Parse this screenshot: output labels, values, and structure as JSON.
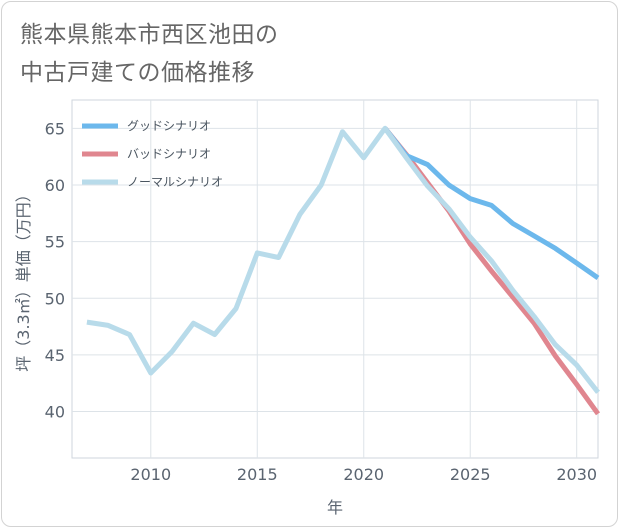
{
  "title_line1": "熊本県熊本市西区池田の",
  "title_line2": "中古戸建ての価格推移",
  "chart_data": {
    "type": "line",
    "title": "熊本県熊本市西区池田の中古戸建ての価格推移",
    "xlabel": "年",
    "ylabel": "坪（3.3㎡）単価（万円）",
    "xlim": [
      2006.3,
      2031
    ],
    "ylim": [
      35.9,
      67.5
    ],
    "xticks": [
      2010,
      2015,
      2020,
      2025,
      2030
    ],
    "yticks": [
      40,
      45,
      50,
      55,
      60,
      65
    ],
    "grid": true,
    "legend_position": "top-left",
    "series": [
      {
        "name": "グッドシナリオ",
        "color": "#6cb8ec",
        "x": [
          2021,
          2022,
          2023,
          2024,
          2025,
          2026,
          2027,
          2028,
          2029,
          2030,
          2031
        ],
        "values": [
          65.0,
          62.6,
          61.8,
          60.0,
          58.8,
          58.2,
          56.6,
          55.5,
          54.4,
          53.1,
          51.8
        ]
      },
      {
        "name": "バッドシナリオ",
        "color": "#e0868f",
        "x": [
          2021,
          2022,
          2023,
          2024,
          2025,
          2026,
          2027,
          2028,
          2029,
          2030,
          2031
        ],
        "values": [
          65.0,
          62.7,
          60.2,
          57.7,
          54.8,
          52.4,
          50.1,
          47.8,
          44.9,
          42.4,
          39.8
        ]
      },
      {
        "name": "ノーマルシナリオ",
        "color": "#b8dbea",
        "x": [
          2007,
          2008,
          2009,
          2010,
          2011,
          2012,
          2013,
          2014,
          2015,
          2016,
          2017,
          2018,
          2019,
          2020,
          2021,
          2022,
          2023,
          2024,
          2025,
          2026,
          2027,
          2028,
          2029,
          2030,
          2031
        ],
        "values": [
          47.9,
          47.6,
          46.8,
          43.4,
          45.3,
          47.8,
          46.8,
          49.1,
          54.0,
          53.6,
          57.4,
          60.0,
          64.7,
          62.4,
          65.0,
          62.4,
          59.9,
          57.9,
          55.4,
          53.3,
          50.7,
          48.4,
          45.9,
          44.1,
          41.7
        ]
      }
    ]
  }
}
